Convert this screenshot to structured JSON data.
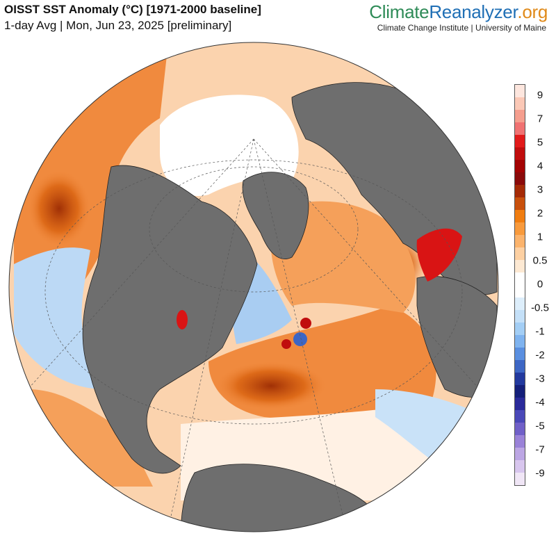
{
  "header": {
    "title": "OISST SST Anomaly (°C) [1971-2000 baseline]",
    "subtitle": "1-day Avg | Mon, Jun 23, 2025 [preliminary]"
  },
  "brand": {
    "part1": "Climate",
    "part2": "Reanalyzer",
    "part3": ".org",
    "tagline": "Climate Change Institute | University of Maine",
    "colors": {
      "climate": "#2e8b57",
      "reanalyzer": "#1f6fb5",
      "org": "#e08a1a"
    }
  },
  "colorbar": {
    "ticks": [
      "9",
      "7",
      "5",
      "4",
      "3",
      "2",
      "1",
      "0.5",
      "0",
      "-0.5",
      "-1",
      "-2",
      "-3",
      "-4",
      "-5",
      "-7",
      "-9"
    ],
    "colors_top_to_bottom": [
      "#fde6de",
      "#fbc8b6",
      "#f59e8e",
      "#f07272",
      "#e11a1a",
      "#c00d0d",
      "#a30303",
      "#8a0a0a",
      "#a52a06",
      "#c8500c",
      "#f07d10",
      "#f89a3c",
      "#fbb36c",
      "#fdd0a2",
      "#fde9d3",
      "#ffffff",
      "#ffffff",
      "#ddeefb",
      "#c4e0f8",
      "#a3cef5",
      "#7fb3ef",
      "#5a8fe0",
      "#3d66c4",
      "#22399e",
      "#141f7a",
      "#2a2a9a",
      "#4a48b8",
      "#7060c8",
      "#9a82d8",
      "#bca6e4",
      "#d8c6ee",
      "#f0e6f6"
    ]
  },
  "map": {
    "projection": "orthographic",
    "land_color": "#6e6e6e",
    "sea_ice_color": "#ffffff",
    "warm_color": "#f0873a",
    "cool_color": "#a9cdf2"
  }
}
